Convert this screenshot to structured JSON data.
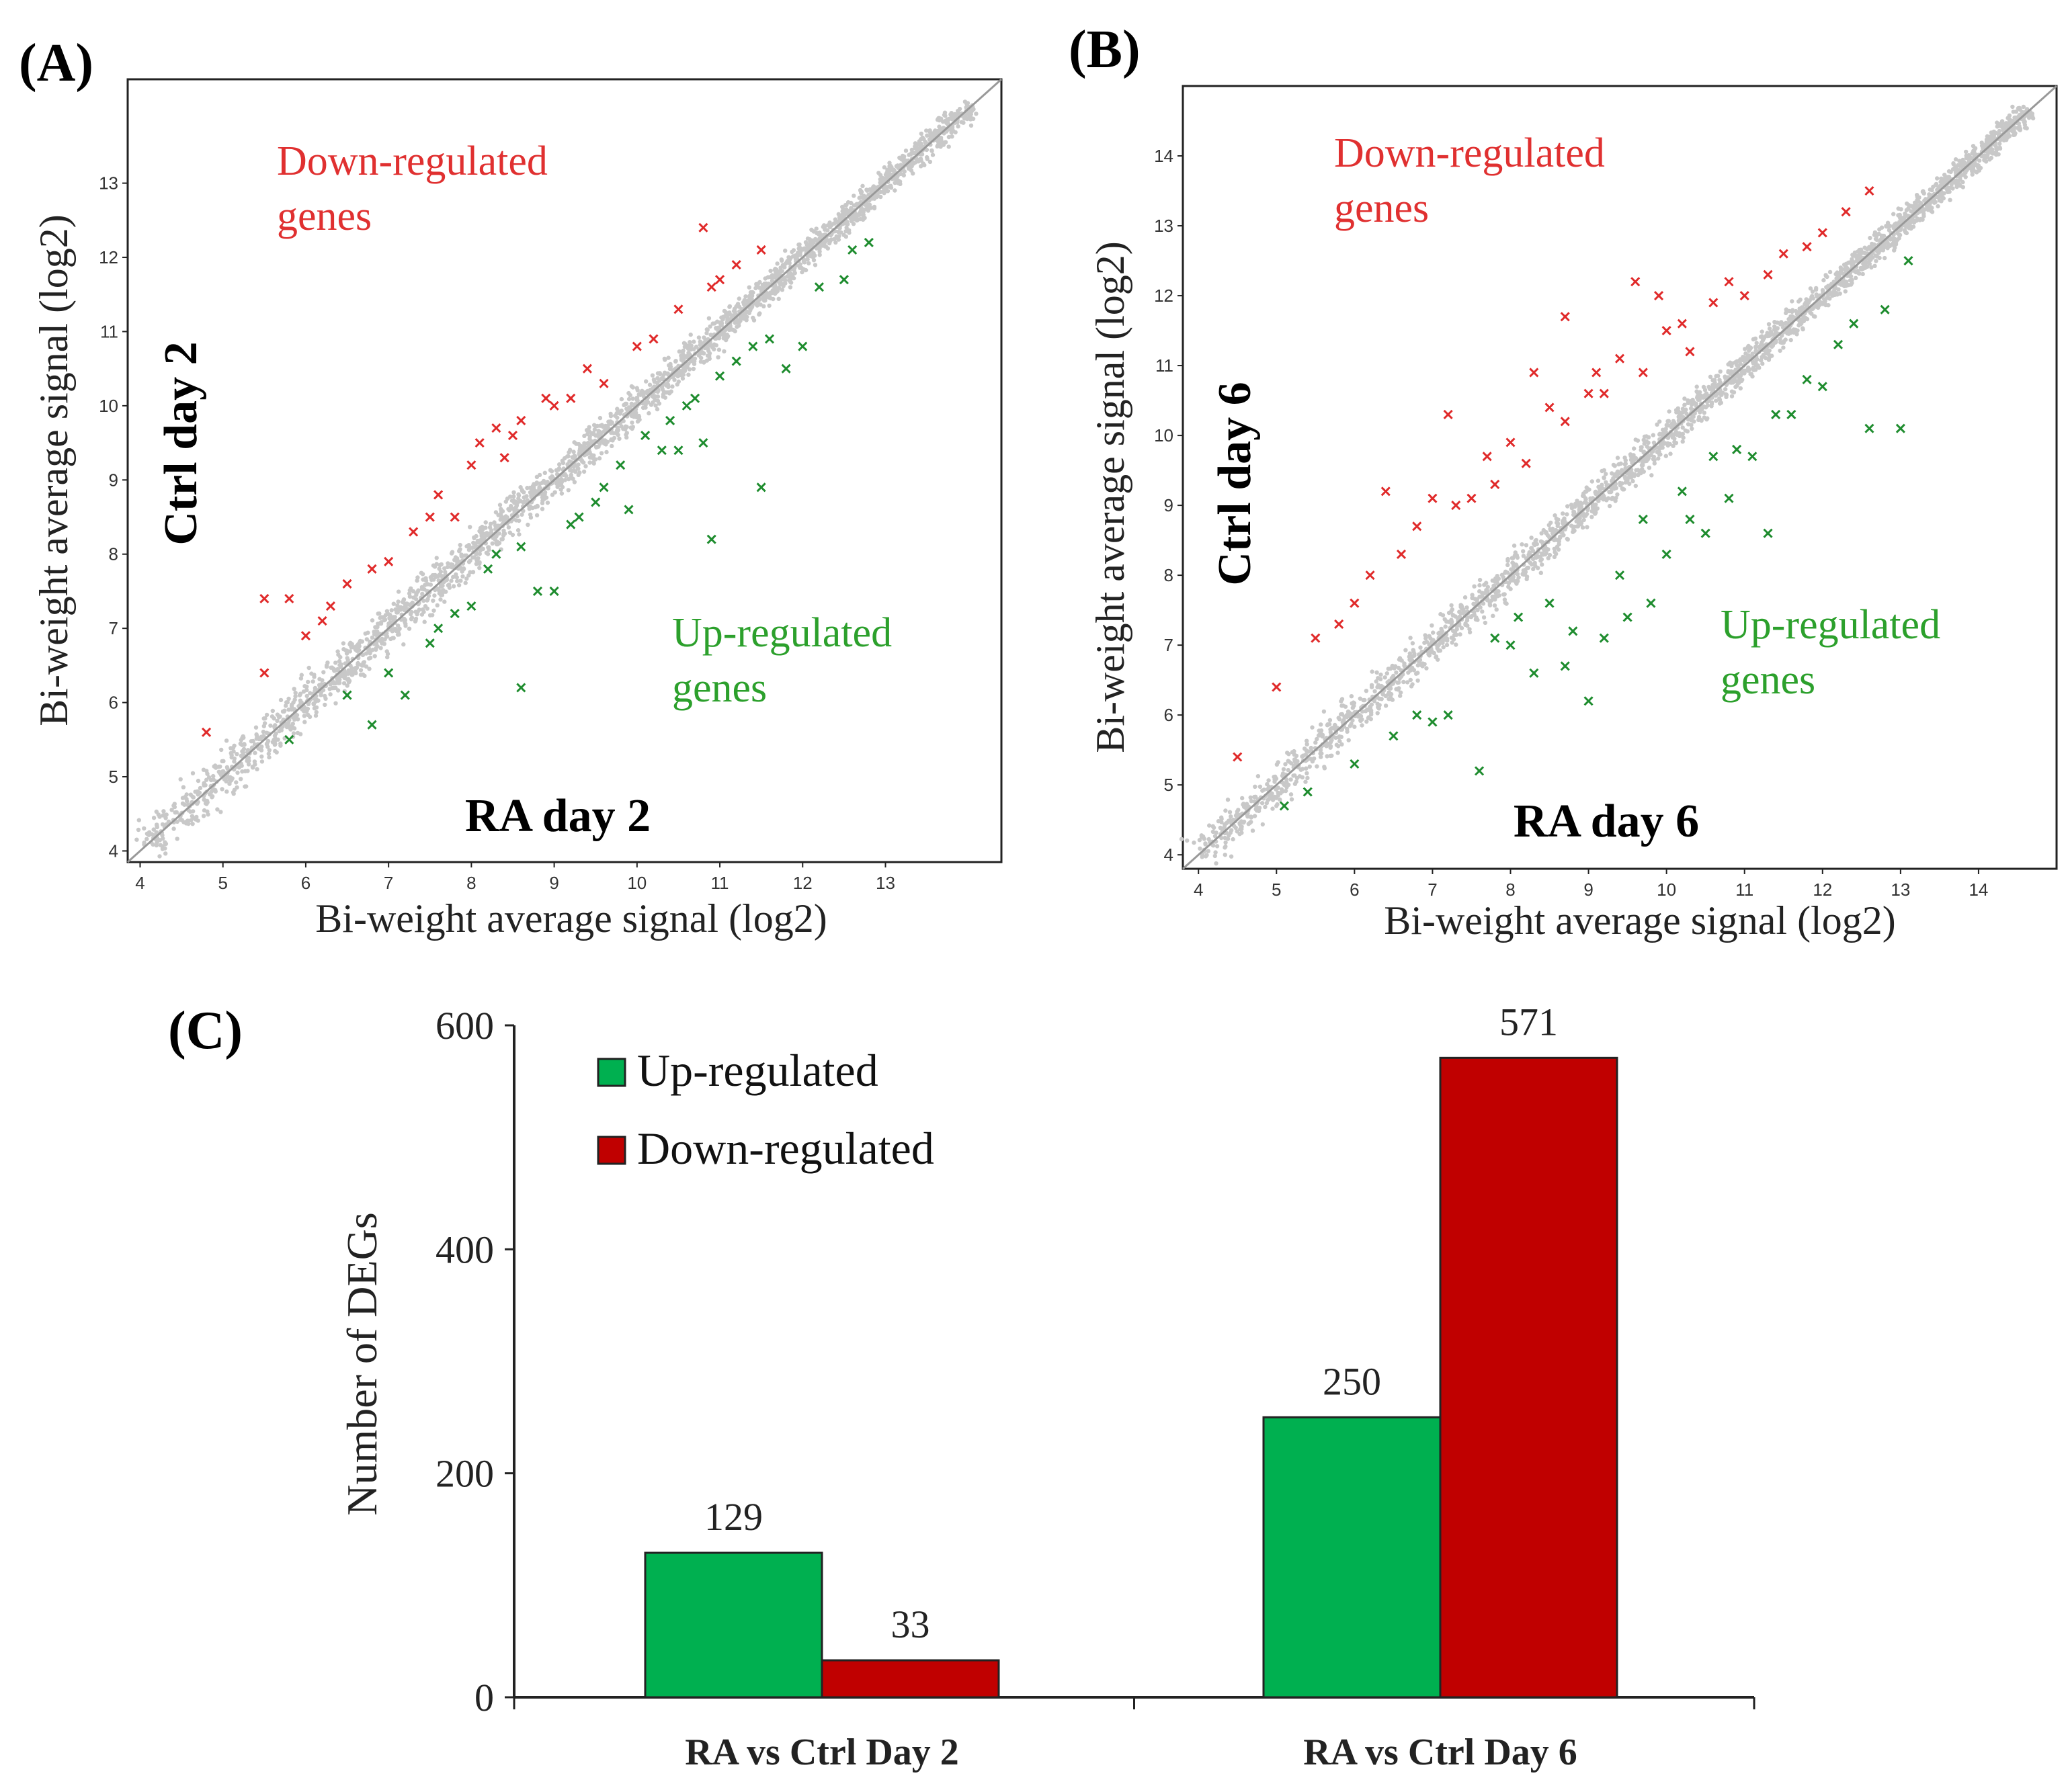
{
  "colors": {
    "up": "#1e8c2e",
    "down": "#e02a2a",
    "cloud": "#c8c8c8",
    "bar_up": "#00b050",
    "bar_down": "#c00000",
    "label_up": "#2ca02c",
    "label_down": "#e03030"
  },
  "chart_data": [
    {
      "type": "scatter",
      "panel_label": "(A)",
      "xlabel": "Bi-weight average signal (log2)",
      "ylabel": "Bi-weight average signal (log2)",
      "x_sample": "RA day 2",
      "y_sample": "Ctrl day 2",
      "xlim": [
        3.85,
        14.4
      ],
      "ylim": [
        3.85,
        14.4
      ],
      "x_ticks": [
        4,
        5,
        6,
        7,
        8,
        9,
        10,
        11,
        12,
        13
      ],
      "y_ticks": [
        4,
        5,
        6,
        7,
        8,
        9,
        10,
        11,
        12,
        13
      ],
      "down_label": [
        "Down-regulated",
        "genes"
      ],
      "up_label": [
        "Up-regulated",
        "genes"
      ],
      "series": [
        {
          "name": "Down-regulated genes",
          "points": [
            [
              5.5,
              7.4
            ],
            [
              5.8,
              7.4
            ],
            [
              4.8,
              5.6
            ],
            [
              5.5,
              6.4
            ],
            [
              6.2,
              7.1
            ],
            [
              6.3,
              7.3
            ],
            [
              6.5,
              7.6
            ],
            [
              7.0,
              7.9
            ],
            [
              7.3,
              8.3
            ],
            [
              7.5,
              8.5
            ],
            [
              7.8,
              8.5
            ],
            [
              8.0,
              9.2
            ],
            [
              8.1,
              9.5
            ],
            [
              8.3,
              9.7
            ],
            [
              8.5,
              9.6
            ],
            [
              8.9,
              10.1
            ],
            [
              9.2,
              10.1
            ],
            [
              9.6,
              10.3
            ],
            [
              10.0,
              10.8
            ],
            [
              10.2,
              10.9
            ],
            [
              10.5,
              11.3
            ],
            [
              10.8,
              12.4
            ],
            [
              9.4,
              10.5
            ],
            [
              8.6,
              9.8
            ],
            [
              7.6,
              8.8
            ],
            [
              11.0,
              11.7
            ],
            [
              11.2,
              11.9
            ],
            [
              6.0,
              6.9
            ],
            [
              6.8,
              7.8
            ],
            [
              9.0,
              10.0
            ],
            [
              10.9,
              11.6
            ],
            [
              11.5,
              12.1
            ],
            [
              8.4,
              9.3
            ]
          ]
        },
        {
          "name": "Up-regulated genes",
          "points": [
            [
              5.8,
              5.5
            ],
            [
              6.5,
              6.1
            ],
            [
              6.8,
              5.7
            ],
            [
              7.2,
              6.1
            ],
            [
              7.5,
              6.8
            ],
            [
              7.8,
              7.2
            ],
            [
              8.0,
              7.3
            ],
            [
              8.3,
              8.0
            ],
            [
              8.6,
              8.1
            ],
            [
              8.8,
              7.5
            ],
            [
              9.0,
              7.5
            ],
            [
              9.3,
              8.5
            ],
            [
              9.5,
              8.7
            ],
            [
              9.9,
              8.6
            ],
            [
              10.3,
              9.4
            ],
            [
              10.5,
              9.4
            ],
            [
              10.8,
              9.5
            ],
            [
              10.9,
              8.2
            ],
            [
              11.5,
              8.9
            ],
            [
              10.6,
              10.0
            ],
            [
              11.0,
              10.4
            ],
            [
              11.4,
              10.8
            ],
            [
              11.8,
              10.5
            ],
            [
              12.0,
              10.8
            ],
            [
              12.5,
              11.7
            ],
            [
              12.6,
              12.1
            ],
            [
              8.6,
              6.2
            ],
            [
              7.0,
              6.4
            ],
            [
              9.6,
              8.9
            ],
            [
              10.1,
              9.6
            ],
            [
              10.4,
              9.8
            ],
            [
              11.2,
              10.6
            ],
            [
              12.2,
              11.6
            ],
            [
              8.2,
              7.8
            ],
            [
              9.2,
              8.4
            ],
            [
              7.6,
              7.0
            ],
            [
              11.6,
              10.9
            ],
            [
              12.8,
              12.2
            ],
            [
              9.8,
              9.2
            ],
            [
              10.7,
              10.1
            ]
          ]
        }
      ]
    },
    {
      "type": "scatter",
      "panel_label": "(B)",
      "xlabel": "Bi-weight average signal (log2)",
      "ylabel": "Bi-weight average signal (log2)",
      "x_sample": "RA day 6",
      "y_sample": "Ctrl day 6",
      "xlim": [
        3.8,
        15.0
      ],
      "ylim": [
        3.8,
        15.0
      ],
      "x_ticks": [
        4,
        5,
        6,
        7,
        8,
        9,
        10,
        11,
        12,
        13,
        14
      ],
      "y_ticks": [
        4,
        5,
        6,
        7,
        8,
        9,
        10,
        11,
        12,
        13,
        14
      ],
      "down_label": [
        "Down-regulated",
        "genes"
      ],
      "up_label": [
        "Up-regulated",
        "genes"
      ],
      "series": [
        {
          "name": "Down-regulated genes",
          "points": [
            [
              4.5,
              5.4
            ],
            [
              5.0,
              6.4
            ],
            [
              5.5,
              7.1
            ],
            [
              6.0,
              7.6
            ],
            [
              6.2,
              8.0
            ],
            [
              6.8,
              8.7
            ],
            [
              7.0,
              9.1
            ],
            [
              7.3,
              9.0
            ],
            [
              7.5,
              9.1
            ],
            [
              7.8,
              9.3
            ],
            [
              8.0,
              9.9
            ],
            [
              8.2,
              9.6
            ],
            [
              8.5,
              10.4
            ],
            [
              8.7,
              10.2
            ],
            [
              9.0,
              10.6
            ],
            [
              9.2,
              10.6
            ],
            [
              9.4,
              11.1
            ],
            [
              9.7,
              10.9
            ],
            [
              10.0,
              11.5
            ],
            [
              10.3,
              11.2
            ],
            [
              10.6,
              11.9
            ],
            [
              11.0,
              12.0
            ],
            [
              11.3,
              12.3
            ],
            [
              11.8,
              12.7
            ],
            [
              12.0,
              12.9
            ],
            [
              12.6,
              13.5
            ],
            [
              9.6,
              12.2
            ],
            [
              8.7,
              11.7
            ],
            [
              7.2,
              10.3
            ],
            [
              6.4,
              9.2
            ],
            [
              10.8,
              12.2
            ],
            [
              9.9,
              12.0
            ],
            [
              8.3,
              10.9
            ],
            [
              7.7,
              9.7
            ],
            [
              5.8,
              7.3
            ],
            [
              11.5,
              12.6
            ],
            [
              12.3,
              13.2
            ],
            [
              9.1,
              10.9
            ],
            [
              10.2,
              11.6
            ],
            [
              6.6,
              8.3
            ]
          ]
        },
        {
          "name": "Up-regulated genes",
          "points": [
            [
              5.1,
              4.7
            ],
            [
              5.4,
              4.9
            ],
            [
              6.0,
              5.3
            ],
            [
              6.5,
              5.7
            ],
            [
              7.0,
              5.9
            ],
            [
              7.2,
              6.0
            ],
            [
              7.6,
              5.2
            ],
            [
              8.0,
              7.0
            ],
            [
              8.3,
              6.6
            ],
            [
              8.7,
              6.7
            ],
            [
              8.8,
              7.2
            ],
            [
              9.0,
              6.2
            ],
            [
              9.2,
              7.1
            ],
            [
              9.5,
              7.4
            ],
            [
              9.8,
              7.6
            ],
            [
              10.0,
              8.3
            ],
            [
              10.3,
              8.8
            ],
            [
              10.5,
              8.6
            ],
            [
              10.8,
              9.1
            ],
            [
              11.1,
              9.7
            ],
            [
              11.3,
              8.6
            ],
            [
              11.6,
              10.3
            ],
            [
              12.0,
              10.7
            ],
            [
              12.2,
              11.3
            ],
            [
              12.6,
              10.1
            ],
            [
              13.0,
              10.1
            ],
            [
              13.1,
              12.5
            ],
            [
              12.8,
              11.8
            ],
            [
              9.7,
              8.8
            ],
            [
              10.6,
              9.7
            ],
            [
              11.4,
              10.3
            ],
            [
              12.4,
              11.6
            ],
            [
              8.5,
              7.6
            ],
            [
              7.8,
              7.1
            ],
            [
              9.4,
              8.0
            ],
            [
              10.9,
              9.8
            ],
            [
              11.8,
              10.8
            ],
            [
              6.8,
              6.0
            ],
            [
              10.2,
              9.2
            ],
            [
              8.1,
              7.4
            ]
          ]
        }
      ]
    },
    {
      "type": "bar",
      "panel_label": "(C)",
      "categories": [
        "RA vs Ctrl Day 2",
        "RA vs Ctrl Day 6"
      ],
      "series": [
        {
          "name": "Up-regulated",
          "values": [
            129,
            250
          ]
        },
        {
          "name": "Down-regulated",
          "values": [
            33,
            571
          ]
        }
      ],
      "ylabel": "Number of DEGs",
      "ylim": [
        0,
        600
      ],
      "y_ticks": [
        0,
        200,
        400,
        600
      ],
      "legend": "top-left"
    }
  ]
}
